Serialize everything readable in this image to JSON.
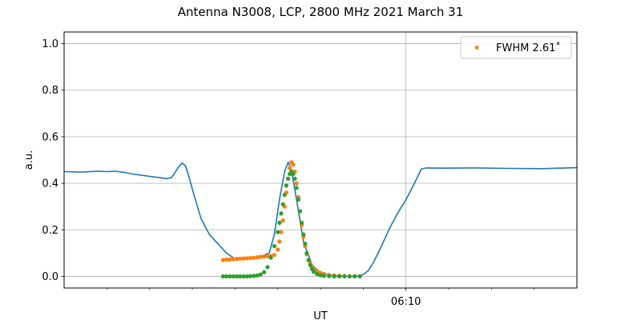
{
  "chart_data": {
    "type": "line",
    "title": "Antenna N3008, LCP, 2800 MHz 2021 March 31",
    "xlabel": "UT",
    "ylabel": "a.u.",
    "x_unit": "minutes",
    "xlim": [
      0,
      30
    ],
    "ylim": [
      -0.05,
      1.05
    ],
    "yticks": [
      0.0,
      0.2,
      0.4,
      0.6,
      0.8,
      1.0
    ],
    "ytick_labels": [
      "0.0",
      "0.2",
      "0.4",
      "0.6",
      "0.8",
      "1.0"
    ],
    "xtick_major": [
      {
        "x": 20,
        "label": "06:10"
      }
    ],
    "xtick_minor": [
      2.5,
      5,
      7.5,
      10,
      12.5,
      15,
      17.5,
      22.5,
      25,
      27.5
    ],
    "grid": true,
    "legend_position": "top-right",
    "colors": {
      "measured": "#1f77b4",
      "orange": "#ff7f0e",
      "green": "#2ca02c",
      "grid": "#b0b0b0"
    },
    "series": [
      {
        "id": "measured",
        "style": "line",
        "color": "#1f77b4",
        "x": [
          0.0,
          1.0,
          2.0,
          2.5,
          3.0,
          3.5,
          4.0,
          5.0,
          5.5,
          6.0,
          6.3,
          6.7,
          6.9,
          7.1,
          7.3,
          7.6,
          8.0,
          8.5,
          9.0,
          9.5,
          10.0,
          10.4,
          10.8,
          11.1,
          11.5,
          12.0,
          12.3,
          12.6,
          12.9,
          13.1,
          13.3,
          13.6,
          14.0,
          14.5,
          15.0,
          15.5,
          16.0,
          16.5,
          17.0,
          17.2,
          17.5,
          17.8,
          18.1,
          18.5,
          19.0,
          19.5,
          20.0,
          20.5,
          20.9,
          21.2,
          22.0,
          24.0,
          26.0,
          28.0,
          30.0
        ],
        "y": [
          0.45,
          0.448,
          0.452,
          0.45,
          0.452,
          0.447,
          0.44,
          0.43,
          0.425,
          0.42,
          0.425,
          0.47,
          0.487,
          0.475,
          0.43,
          0.35,
          0.25,
          0.18,
          0.14,
          0.1,
          0.075,
          0.075,
          0.078,
          0.08,
          0.085,
          0.1,
          0.18,
          0.33,
          0.45,
          0.49,
          0.46,
          0.33,
          0.15,
          0.05,
          0.015,
          0.005,
          0.002,
          0.0,
          0.0,
          0.002,
          0.008,
          0.025,
          0.06,
          0.12,
          0.2,
          0.27,
          0.33,
          0.4,
          0.462,
          0.466,
          0.465,
          0.466,
          0.464,
          0.463,
          0.467
        ]
      },
      {
        "id": "orange",
        "name": "FWHM 2.61$^\\circ$",
        "legend_label": "FWHM 2.61˚",
        "style": "points",
        "color": "#ff7f0e",
        "x": [
          9.3,
          9.5,
          9.7,
          9.9,
          10.1,
          10.3,
          10.5,
          10.7,
          10.9,
          11.1,
          11.3,
          11.5,
          11.7,
          11.9,
          12.1,
          12.3,
          12.5,
          12.6,
          12.7,
          12.8,
          12.9,
          13.0,
          13.1,
          13.2,
          13.3,
          13.4,
          13.5,
          13.6,
          13.7,
          13.8,
          13.9,
          14.0,
          14.1,
          14.2,
          14.3,
          14.4,
          14.5,
          14.6,
          14.8,
          15.0,
          15.2,
          15.5,
          15.8,
          16.1,
          16.4,
          16.7,
          17.0,
          17.3
        ],
        "y": [
          0.07,
          0.072,
          0.073,
          0.074,
          0.075,
          0.076,
          0.077,
          0.078,
          0.079,
          0.08,
          0.082,
          0.084,
          0.085,
          0.086,
          0.088,
          0.092,
          0.115,
          0.15,
          0.19,
          0.24,
          0.3,
          0.36,
          0.42,
          0.465,
          0.49,
          0.48,
          0.45,
          0.4,
          0.34,
          0.28,
          0.22,
          0.17,
          0.13,
          0.095,
          0.07,
          0.055,
          0.042,
          0.033,
          0.022,
          0.015,
          0.01,
          0.006,
          0.004,
          0.003,
          0.002,
          0.001,
          0.001,
          0.001
        ]
      },
      {
        "id": "green",
        "style": "points",
        "color": "#2ca02c",
        "x": [
          9.3,
          9.5,
          9.7,
          9.9,
          10.1,
          10.3,
          10.5,
          10.7,
          10.9,
          11.1,
          11.3,
          11.5,
          11.7,
          11.9,
          12.1,
          12.3,
          12.5,
          12.6,
          12.7,
          12.8,
          12.9,
          13.0,
          13.1,
          13.2,
          13.3,
          13.4,
          13.5,
          13.6,
          13.7,
          13.8,
          13.9,
          14.0,
          14.1,
          14.2,
          14.3,
          14.4,
          14.5,
          14.6,
          14.8,
          15.0,
          15.2,
          15.5,
          15.8,
          16.1,
          16.4,
          16.7,
          17.0,
          17.3
        ],
        "y": [
          0.0,
          0.0,
          0.0,
          0.0,
          0.0,
          0.0,
          0.0,
          0.0,
          0.001,
          0.002,
          0.004,
          0.008,
          0.018,
          0.04,
          0.08,
          0.13,
          0.19,
          0.23,
          0.27,
          0.31,
          0.35,
          0.39,
          0.42,
          0.44,
          0.45,
          0.44,
          0.42,
          0.38,
          0.33,
          0.28,
          0.23,
          0.18,
          0.14,
          0.1,
          0.07,
          0.048,
          0.032,
          0.02,
          0.01,
          0.005,
          0.002,
          0.001,
          0.0,
          0.0,
          0.0,
          0.0,
          0.0,
          0.0
        ]
      }
    ]
  }
}
